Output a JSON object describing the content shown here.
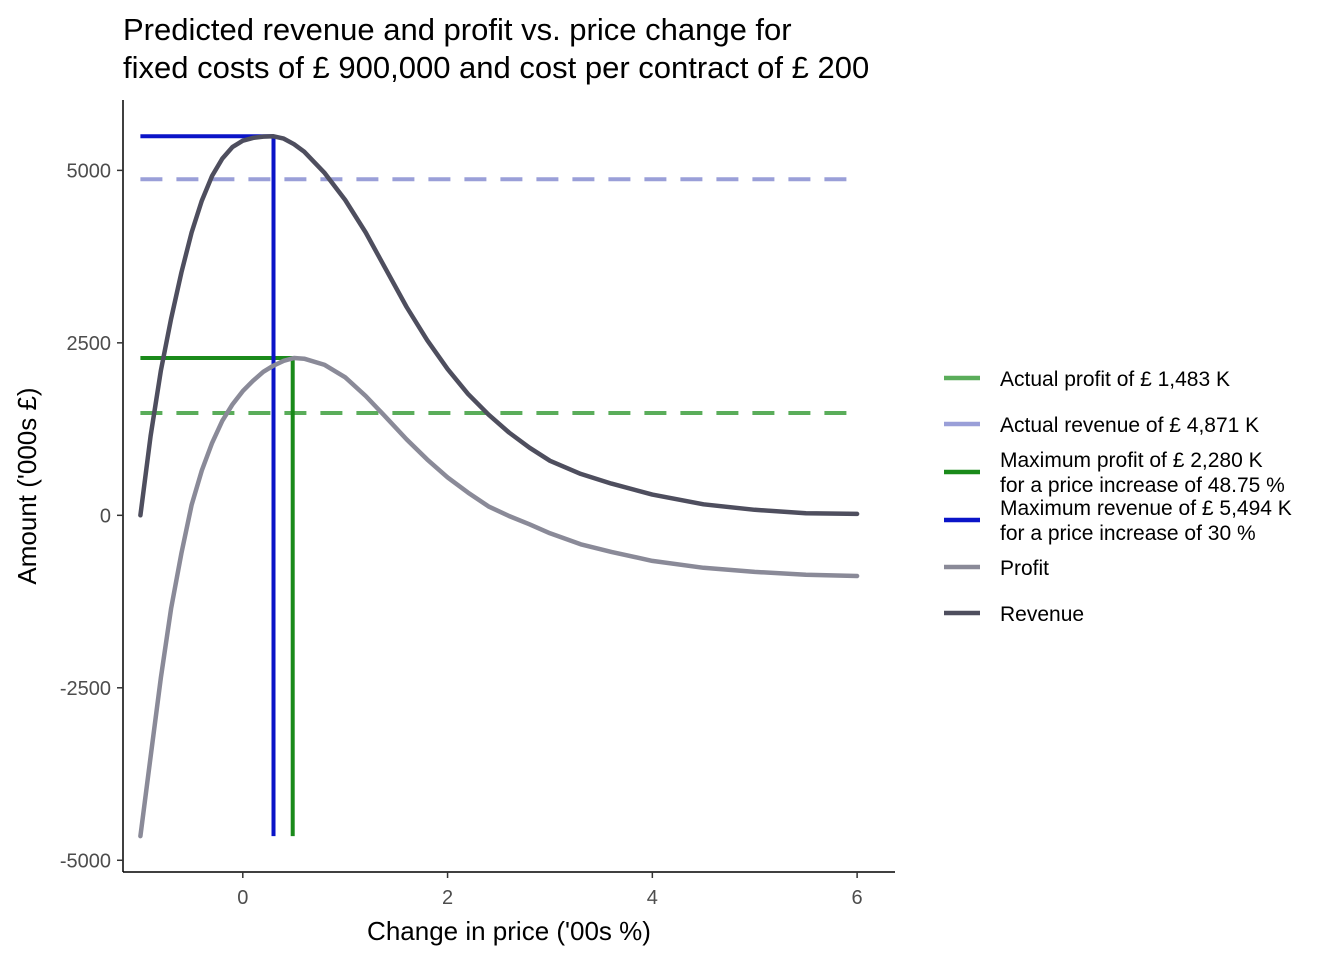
{
  "chart_data": {
    "type": "line",
    "title_lines": [
      "Predicted revenue and profit vs. price change for",
      "fixed costs of £ 900,000 and cost per contract of £ 200"
    ],
    "xlabel": "Change in price ('00s %)",
    "ylabel": "Amount ('000s £)",
    "xlim": [
      -1.17,
      6.37
    ],
    "ylim": [
      -5170,
      6020
    ],
    "xticks": [
      0,
      2,
      4,
      6
    ],
    "xtick_labels": [
      "0",
      "2",
      "4",
      "6"
    ],
    "yticks": [
      -5000,
      -2500,
      0,
      2500,
      5000
    ],
    "ytick_labels": [
      "-5000",
      "-2500",
      "0",
      "2500",
      "5000"
    ],
    "grid": false,
    "legend_position": "right",
    "series": [
      {
        "name": "Revenue",
        "color": "#4e4e5e",
        "x": [
          -1,
          -0.9,
          -0.8,
          -0.7,
          -0.6,
          -0.5,
          -0.4,
          -0.3,
          -0.2,
          -0.1,
          0,
          0.1,
          0.2,
          0.3,
          0.4,
          0.5,
          0.6,
          0.8,
          1.0,
          1.2,
          1.4,
          1.6,
          1.8,
          2.0,
          2.2,
          2.4,
          2.6,
          2.8,
          3.0,
          3.3,
          3.6,
          4.0,
          4.5,
          5.0,
          5.5,
          6.0
        ],
        "y": [
          0,
          1150,
          2100,
          2850,
          3520,
          4100,
          4560,
          4920,
          5170,
          5340,
          5430,
          5470,
          5490,
          5494,
          5460,
          5380,
          5270,
          4960,
          4570,
          4100,
          3560,
          3020,
          2540,
          2120,
          1760,
          1460,
          1200,
          980,
          790,
          600,
          460,
          300,
          160,
          80,
          30,
          20
        ]
      },
      {
        "name": "Profit",
        "color": "#8a8a98",
        "x": [
          -1,
          -0.9,
          -0.8,
          -0.7,
          -0.6,
          -0.5,
          -0.4,
          -0.3,
          -0.2,
          -0.1,
          0,
          0.1,
          0.2,
          0.3,
          0.4,
          0.5,
          0.6,
          0.8,
          1.0,
          1.2,
          1.4,
          1.6,
          1.8,
          2.0,
          2.2,
          2.4,
          2.6,
          2.8,
          3.0,
          3.3,
          3.6,
          4.0,
          4.5,
          5.0,
          5.5,
          6.0
        ],
        "y": [
          -4650,
          -3500,
          -2350,
          -1350,
          -550,
          150,
          650,
          1050,
          1370,
          1610,
          1800,
          1950,
          2080,
          2170,
          2240,
          2280,
          2270,
          2180,
          2000,
          1730,
          1420,
          1100,
          810,
          550,
          330,
          130,
          -10,
          -130,
          -260,
          -420,
          -530,
          -660,
          -760,
          -820,
          -860,
          -880
        ]
      }
    ],
    "reference_lines": [
      {
        "name": "Actual profit of £ 1,483 K",
        "color": "#5aad5a",
        "style": "dashed",
        "orientation": "horizontal",
        "y": 1483,
        "x_range": [
          -1,
          6
        ]
      },
      {
        "name": "Actual revenue of £ 4,871 K",
        "color": "#9a9fd8",
        "style": "dashed",
        "orientation": "horizontal",
        "y": 4871,
        "x_range": [
          -1,
          6
        ]
      },
      {
        "name": "Maximum profit of £ 2,280 K",
        "name_line2": "for a price increase of 48.75 %",
        "color": "#1a8a1a",
        "style": "solid",
        "x": 0.4875,
        "y": 2280,
        "x_start": -1,
        "y_bottom": -4650
      },
      {
        "name": "Maximum revenue of £ 5,494 K",
        "name_line2": "for a price increase of 30 %",
        "color": "#0a14c8",
        "style": "solid",
        "x": 0.3,
        "y": 5494,
        "x_start": -1,
        "y_bottom": -4650
      }
    ],
    "legend": [
      {
        "label": "Actual profit of £ 1,483 K",
        "label2": "",
        "color": "#5aad5a"
      },
      {
        "label": "Actual revenue of £ 4,871 K",
        "label2": "",
        "color": "#9a9fd8"
      },
      {
        "label": "Maximum profit of £ 2,280 K",
        "label2": "for a price increase of 48.75 %",
        "color": "#1a8a1a"
      },
      {
        "label": "Maximum revenue of £ 5,494 K",
        "label2": "for a price increase of 30 %",
        "color": "#0a14c8"
      },
      {
        "label": "Profit",
        "label2": "",
        "color": "#8a8a98"
      },
      {
        "label": "Revenue",
        "label2": "",
        "color": "#4e4e5e"
      }
    ]
  }
}
